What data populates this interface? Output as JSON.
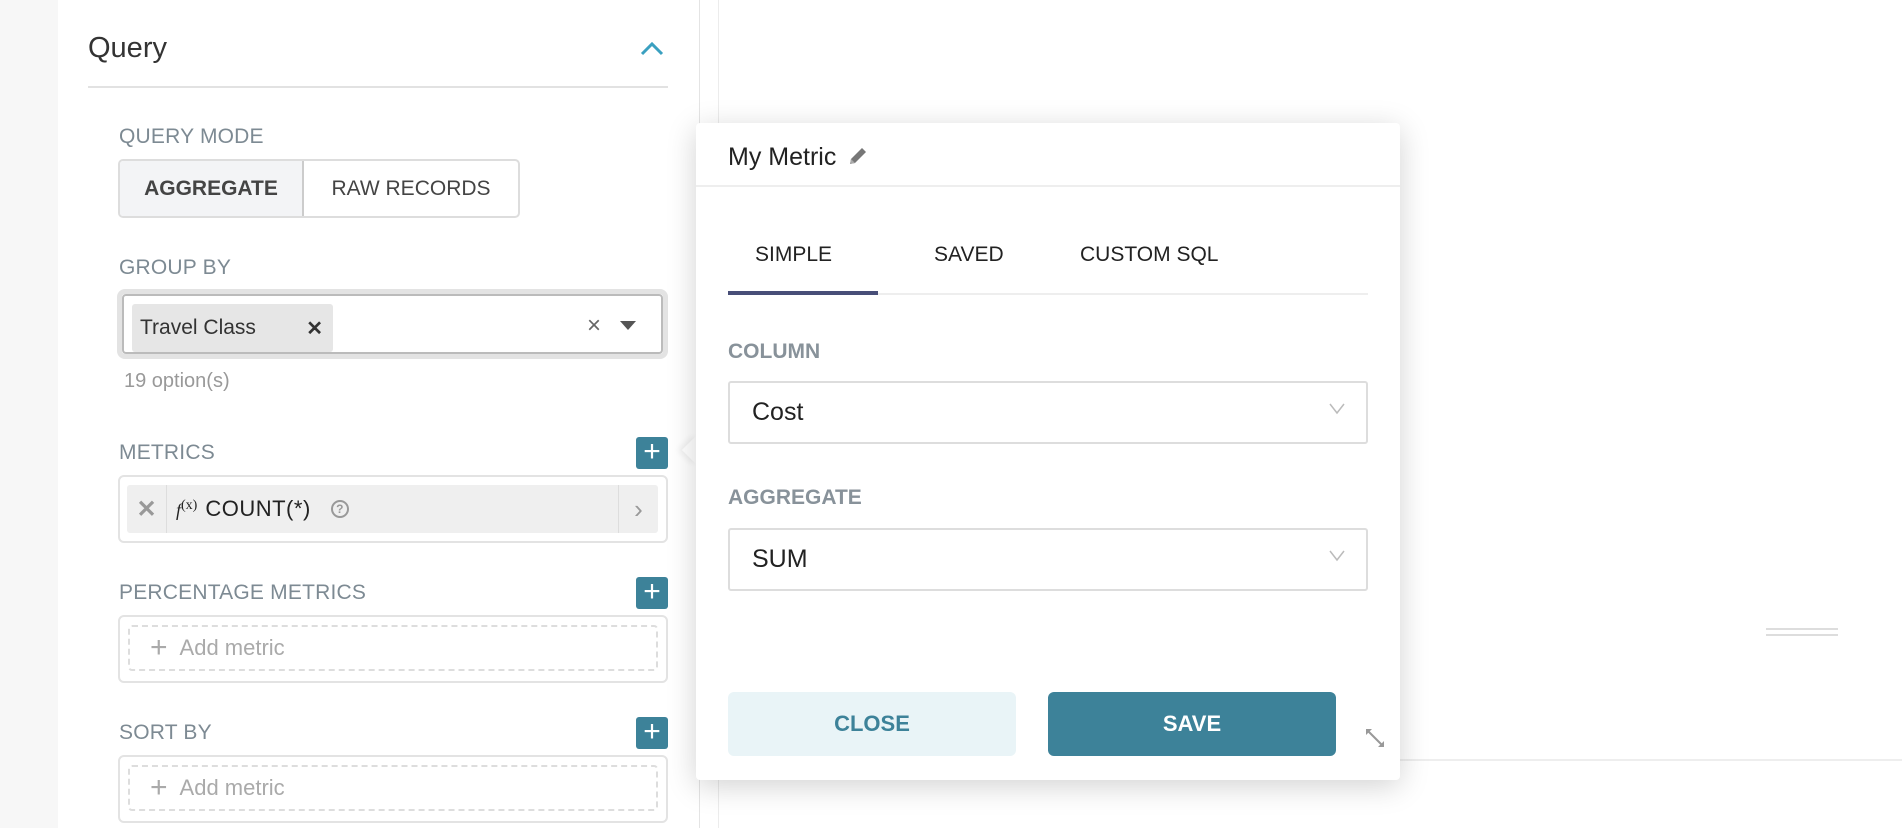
{
  "query": {
    "title": "Query",
    "query_mode": {
      "label": "QUERY MODE",
      "options": [
        "AGGREGATE",
        "RAW RECORDS"
      ],
      "selected": "AGGREGATE"
    },
    "group_by": {
      "label": "GROUP BY",
      "tags": [
        "Travel Class"
      ],
      "clear": "×",
      "options_count": "19 option(s)"
    },
    "metrics": {
      "label": "METRICS",
      "items": [
        {
          "fx": "f",
          "fx_sub": "(x)",
          "name": "COUNT(*)"
        }
      ]
    },
    "percentage_metrics": {
      "label": "PERCENTAGE METRICS",
      "placeholder": "Add metric"
    },
    "sort_by": {
      "label": "SORT BY",
      "placeholder": "Add metric"
    }
  },
  "popover": {
    "title": "My Metric",
    "tabs": [
      "SIMPLE",
      "SAVED",
      "CUSTOM SQL"
    ],
    "active_tab": "SIMPLE",
    "column": {
      "label": "COLUMN",
      "value": "Cost"
    },
    "aggregate": {
      "label": "AGGREGATE",
      "value": "SUM"
    },
    "close_label": "CLOSE",
    "save_label": "SAVE"
  },
  "colors": {
    "accent": "#3d8299",
    "tab_active": "#484e78",
    "close_bg": "#e9f4f7"
  }
}
